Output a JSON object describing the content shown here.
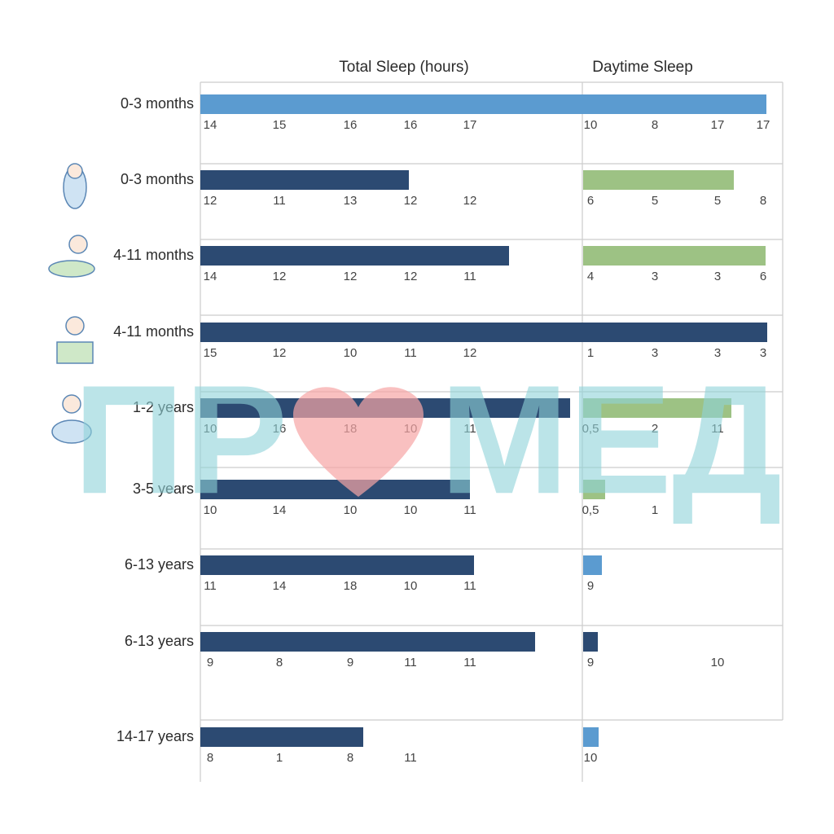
{
  "headers": {
    "total": "Total Sleep (hours)",
    "daytime": "Daytime Sleep"
  },
  "watermark": [
    "ПР",
    "МЕД"
  ],
  "rows": [
    {
      "label": "0-3 months",
      "total": [
        14,
        15,
        16,
        16,
        17
      ],
      "daytime": [
        10,
        8,
        17,
        17
      ]
    },
    {
      "label": "0-3 months",
      "total": [
        12,
        11,
        13,
        12,
        12
      ],
      "daytime": [
        6,
        5,
        5,
        8
      ]
    },
    {
      "label": "4-11 months",
      "total": [
        14,
        12,
        12,
        12,
        11
      ],
      "daytime": [
        4,
        3,
        3,
        6
      ]
    },
    {
      "label": "4-11 months",
      "total": [
        15,
        12,
        10,
        11,
        12
      ],
      "daytime": [
        1,
        3,
        3,
        3
      ]
    },
    {
      "label": "1-2 years",
      "total": [
        10,
        16,
        18,
        10,
        11
      ],
      "daytime": [
        "0,5",
        2,
        11
      ]
    },
    {
      "label": "3-5 years",
      "total": [
        10,
        14,
        10,
        10,
        11
      ],
      "daytime": [
        "0,5",
        1
      ]
    },
    {
      "label": "6-13 years",
      "total": [
        11,
        14,
        18,
        10,
        11
      ],
      "daytime": [
        9
      ]
    },
    {
      "label": "6-13 years",
      "total": [
        9,
        8,
        9,
        11,
        11
      ],
      "daytime": [
        9,
        null,
        10
      ]
    },
    {
      "label": "14-17 years",
      "total": [
        8,
        1,
        8,
        11
      ],
      "daytime": [
        10
      ]
    }
  ]
}
